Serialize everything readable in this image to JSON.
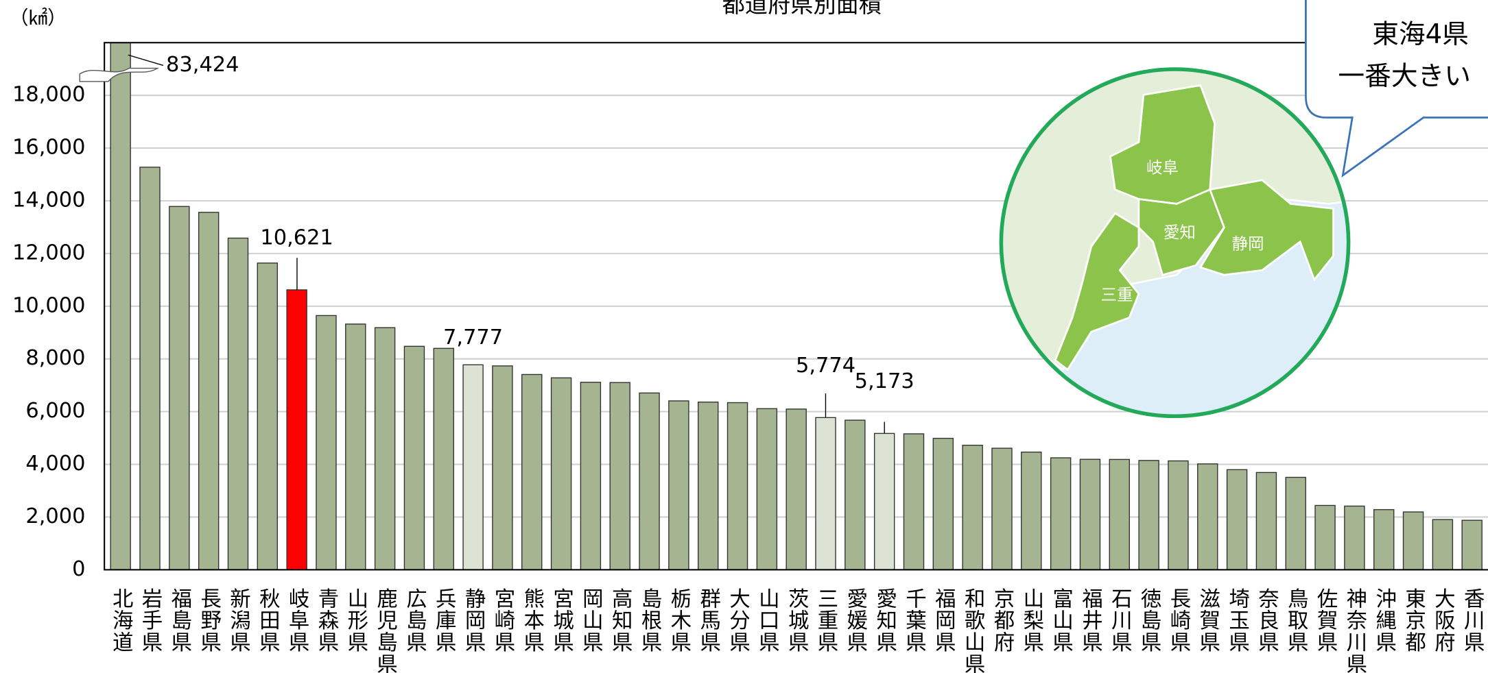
{
  "chart_data": {
    "type": "bar",
    "title": "都道府県別面積",
    "y_unit": "（㎢）",
    "categories": [
      "北海道",
      "岩手県",
      "福島県",
      "長野県",
      "新潟県",
      "秋田県",
      "岐阜県",
      "青森県",
      "山形県",
      "鹿児島県",
      "広島県",
      "兵庫県",
      "静岡県",
      "宮崎県",
      "熊本県",
      "宮城県",
      "岡山県",
      "高知県",
      "島根県",
      "栃木県",
      "群馬県",
      "大分県",
      "山口県",
      "茨城県",
      "三重県",
      "愛媛県",
      "愛知県",
      "千葉県",
      "福岡県",
      "和歌山県",
      "京都府",
      "山梨県",
      "富山県",
      "福井県",
      "石川県",
      "徳島県",
      "長崎県",
      "滋賀県",
      "埼玉県",
      "奈良県",
      "鳥取県",
      "佐賀県",
      "神奈川県",
      "沖縄県",
      "東京都",
      "大阪府",
      "香川県"
    ],
    "values": [
      83424,
      15275,
      13784,
      13562,
      12584,
      11638,
      10621,
      9646,
      9323,
      9187,
      8479,
      8401,
      7777,
      7735,
      7409,
      7282,
      7114,
      7104,
      6708,
      6408,
      6362,
      6341,
      6113,
      6097,
      5774,
      5676,
      5173,
      5158,
      4987,
      4725,
      4612,
      4465,
      4248,
      4191,
      4186,
      4147,
      4131,
      4017,
      3798,
      3691,
      3507,
      2441,
      2416,
      2282,
      2194,
      1905,
      1877
    ],
    "value_labels": [
      "83,424",
      null,
      null,
      null,
      null,
      null,
      "10,621",
      null,
      null,
      null,
      null,
      null,
      "7,777",
      null,
      null,
      null,
      null,
      null,
      null,
      null,
      null,
      null,
      null,
      null,
      "5,774",
      null,
      "5,173",
      null,
      null,
      null,
      null,
      null,
      null,
      null,
      null,
      null,
      null,
      null,
      null,
      null,
      null,
      null,
      null,
      null,
      null,
      null,
      null
    ],
    "colors": [
      "#a5b592",
      "#a5b592",
      "#a5b592",
      "#a5b592",
      "#a5b592",
      "#a5b592",
      "#ff0000",
      "#a5b592",
      "#a5b592",
      "#a5b592",
      "#a5b592",
      "#a5b592",
      "#dde3d4",
      "#a5b592",
      "#a5b592",
      "#a5b592",
      "#a5b592",
      "#a5b592",
      "#a5b592",
      "#a5b592",
      "#a5b592",
      "#a5b592",
      "#a5b592",
      "#a5b592",
      "#dde3d4",
      "#a5b592",
      "#dde3d4",
      "#a5b592",
      "#a5b592",
      "#a5b592",
      "#a5b592",
      "#a5b592",
      "#a5b592",
      "#a5b592",
      "#a5b592",
      "#a5b592",
      "#a5b592",
      "#a5b592",
      "#a5b592",
      "#a5b592",
      "#a5b592",
      "#a5b592",
      "#a5b592",
      "#a5b592",
      "#a5b592",
      "#a5b592",
      "#a5b592"
    ],
    "ylim": [
      0,
      20000
    ],
    "yticks": [
      0,
      {
        "value": 2000,
        "label": "2,000"
      },
      {
        "value": 4000,
        "label": "4,000"
      },
      {
        "value": 6000,
        "label": "6,000"
      },
      {
        "value": 8000,
        "label": "8,000"
      },
      {
        "value": 10000,
        "label": "10,000"
      },
      {
        "value": 12000,
        "label": "12,000"
      },
      {
        "value": 14000,
        "label": "14,000"
      },
      {
        "value": 16000,
        "label": "16,000"
      },
      {
        "value": 18000,
        "label": "18,000"
      }
    ],
    "grid": true
  },
  "map": {
    "labels": [
      "岐阜",
      "愛知",
      "静岡",
      "三重"
    ]
  },
  "callout": {
    "lines": [
      "東海4県",
      "一番大きい"
    ]
  }
}
